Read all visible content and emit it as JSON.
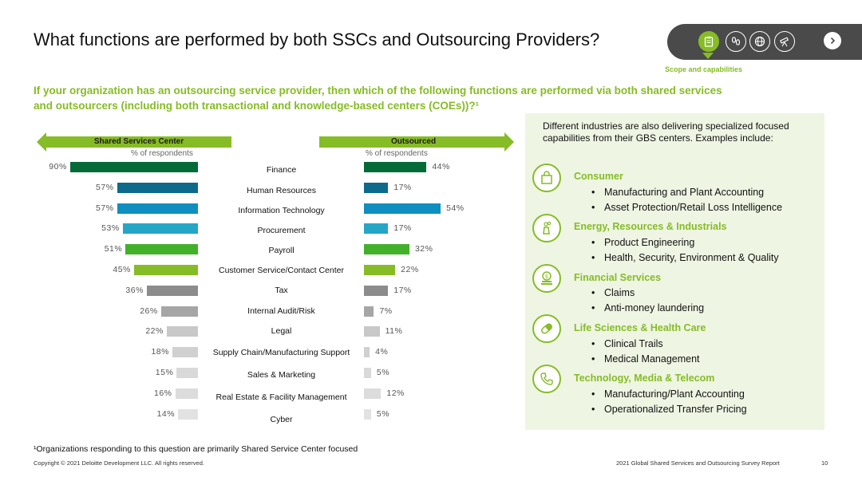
{
  "title": "What functions are performed by both SSCs and Outsourcing Providers?",
  "question": "If your organization has an outsourcing service provider, then which of the following functions are performed via both shared services and outsourcers (including both transactional and knowledge-based centers (COEs))?¹",
  "nav": {
    "caption": "Scope and capabilities",
    "icons": [
      "clipboard-icon",
      "footprints-icon",
      "globe-icon",
      "telescope-icon"
    ]
  },
  "chart_data": {
    "type": "bar",
    "left_header": "Shared Services Center",
    "right_header": "Outsourced",
    "left_subheader": "% of respondents",
    "right_subheader": "% of respondents",
    "categories": [
      "Finance",
      "Human Resources",
      "Information Technology",
      "Procurement",
      "Payroll",
      "Customer Service/Contact Center",
      "Tax",
      "Internal Audit/Risk",
      "Legal",
      "Supply Chain/Manufacturing Support",
      "Sales & Marketing",
      "Real Estate & Facility Management",
      "Cyber"
    ],
    "series": [
      {
        "name": "Shared Services Center",
        "values": [
          90,
          57,
          57,
          53,
          51,
          45,
          36,
          26,
          22,
          18,
          15,
          16,
          14
        ],
        "labels": [
          "90%",
          "57%",
          "57%",
          "53%",
          "51%",
          "45%",
          "36%",
          "26%",
          "22%",
          "18%",
          "15%",
          "16%",
          "14%"
        ]
      },
      {
        "name": "Outsourced",
        "values": [
          44,
          17,
          54,
          17,
          32,
          22,
          17,
          7,
          11,
          4,
          5,
          12,
          5
        ],
        "labels": [
          "44%",
          "17%",
          "54%",
          "17%",
          "32%",
          "22%",
          "17%",
          "7%",
          "11%",
          "4%",
          "5%",
          "12%",
          "5%"
        ]
      }
    ],
    "colors": [
      "#046a38",
      "#0d6a8a",
      "#0f8fbf",
      "#25a6c8",
      "#43b02a",
      "#86bc25",
      "#8c8c8c",
      "#a6a6a6",
      "#c8c8c8",
      "#d0d0d0",
      "#d9d9d9",
      "#dcdcdc",
      "#e2e2e2"
    ]
  },
  "panel": {
    "intro": "Different industries are also delivering specialized focused capabilities from their GBS centers. Examples include:",
    "industries": [
      {
        "title": "Consumer",
        "icon": "shopping-bag-icon",
        "items": [
          "Manufacturing and Plant Accounting",
          "Asset Protection/Retail Loss Intelligence"
        ]
      },
      {
        "title": "Energy, Resources & Industrials",
        "icon": "factory-icon",
        "items": [
          "Product Engineering",
          "Health, Security, Environment & Quality"
        ]
      },
      {
        "title": "Financial Services",
        "icon": "money-icon",
        "items": [
          "Claims",
          "Anti-money laundering"
        ]
      },
      {
        "title": "Life Sciences & Health Care",
        "icon": "pill-icon",
        "items": [
          "Clinical Trails",
          "Medical Management"
        ]
      },
      {
        "title": "Technology, Media & Telecom",
        "icon": "phone-icon",
        "items": [
          "Manufacturing/Plant Accounting",
          "Operationalized Transfer Pricing"
        ]
      }
    ]
  },
  "footer": {
    "footnote": "¹Organizations responding to this question are primarily  Shared Service Center focused",
    "copyright": "Copyright © 2021 Deloitte Development LLC. All rights reserved.",
    "report": "2021 Global Shared Services and Outsourcing Survey Report",
    "page": "10"
  }
}
